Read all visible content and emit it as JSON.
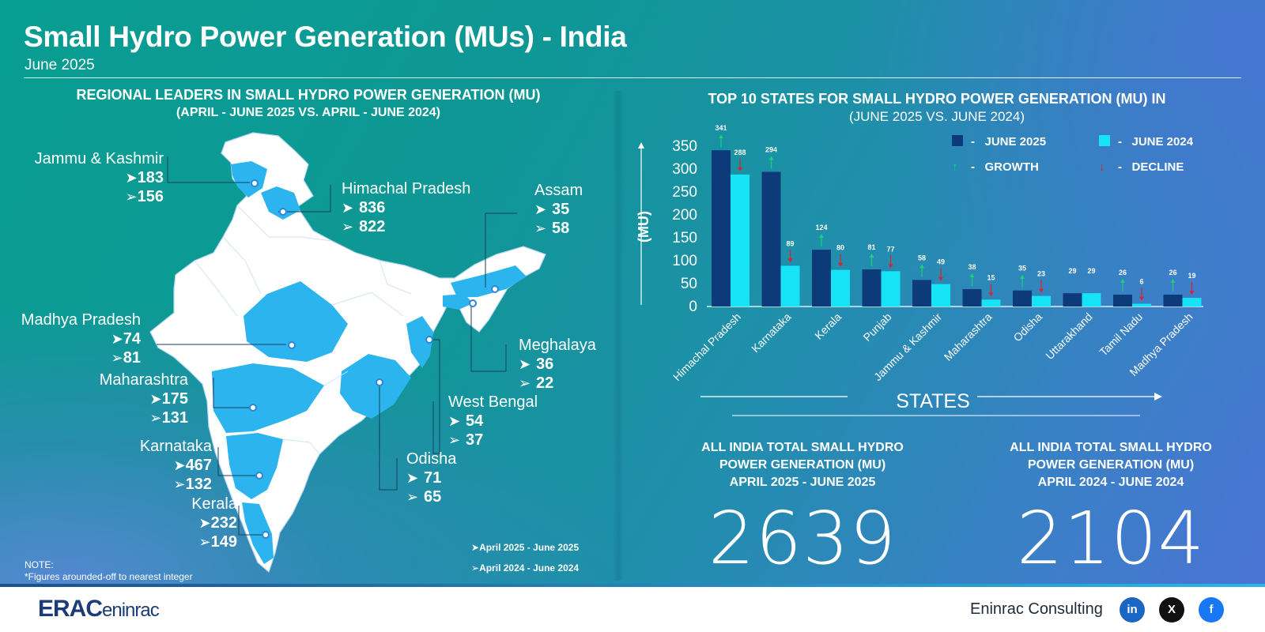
{
  "title": "Small Hydro Power Generation (MUs) - India",
  "subtitle": "June 2025",
  "map": {
    "heading1": "REGIONAL LEADERS IN SMALL HYDRO POWER GENERATION (MU)",
    "heading2": "(APRIL - JUNE 2025 VS. APRIL - JUNE 2024)",
    "regions": [
      {
        "name": "Jammu & Kashmir",
        "current": "183",
        "previous": "156"
      },
      {
        "name": "Himachal Pradesh",
        "current": "836",
        "previous": "822"
      },
      {
        "name": "Assam",
        "current": "35",
        "previous": "58"
      },
      {
        "name": "Madhya Pradesh",
        "current": "74",
        "previous": "81"
      },
      {
        "name": "Meghalaya",
        "current": "36",
        "previous": "22"
      },
      {
        "name": "Maharashtra",
        "current": "175",
        "previous": "131"
      },
      {
        "name": "West Bengal",
        "current": "54",
        "previous": "37"
      },
      {
        "name": "Karnataka",
        "current": "467",
        "previous": "132"
      },
      {
        "name": "Odisha",
        "current": "71",
        "previous": "65"
      },
      {
        "name": "Kerala",
        "current": "232",
        "previous": "149"
      }
    ],
    "legend_current": "April 2025 - June 2025",
    "legend_previous": "April 2024 - June 2024",
    "note_title": "NOTE:",
    "note_text": "*Figures arounded-off to nearest integer",
    "map_fill": "#ffffff",
    "highlight_fill": "#2cb4ef"
  },
  "chart_heading1": "TOP 10 STATES FOR SMALL HYDRO POWER GENERATION (MU) IN",
  "chart_heading2": "(JUNE 2025 VS. JUNE 2024)",
  "legend": {
    "june2025": "JUNE 2025",
    "june2024": "JUNE 2024",
    "growth": "GROWTH",
    "decline": "DECLINE"
  },
  "chart_data": {
    "type": "bar",
    "categories": [
      "Himachal Pradesh",
      "Karnataka",
      "Kerala",
      "Punjab",
      "Jammu & Kashmir",
      "Maharashtra",
      "Odisha",
      "Uttarakhand",
      "Tamil Nadu",
      "Madhya Pradesh"
    ],
    "series": [
      {
        "name": "JUNE 2025",
        "color": "#0d3a78",
        "values": [
          341,
          294,
          124,
          81,
          58,
          38,
          35,
          29,
          26,
          26
        ]
      },
      {
        "name": "JUNE 2024",
        "color": "#17e3f7",
        "values": [
          288,
          89,
          80,
          77,
          49,
          15,
          23,
          29,
          6,
          19
        ]
      }
    ],
    "ylabel": "(MU)",
    "xlabel": "STATES",
    "ylim": [
      0,
      350
    ],
    "yticks": [
      0,
      50,
      100,
      150,
      200,
      250,
      300,
      350
    ],
    "growth_color": "#1ad17a",
    "decline_color": "#e0202a"
  },
  "totals": [
    {
      "label1": "ALL INDIA TOTAL SMALL HYDRO",
      "label2": "POWER GENERATION (MU)",
      "label3": "APRIL 2025 - JUNE 2025",
      "value": "2639"
    },
    {
      "label1": "ALL INDIA TOTAL SMALL HYDRO",
      "label2": "POWER GENERATION (MU)",
      "label3": "APRIL 2024 - JUNE 2024",
      "value": "2104"
    }
  ],
  "footer": {
    "logo_text": "ERAC",
    "logo_sub": "eninrac",
    "company": "Eninrac Consulting",
    "social": [
      {
        "icon": "linkedin-icon",
        "glyph": "in",
        "color": "#1a66c2"
      },
      {
        "icon": "x-icon",
        "glyph": "X",
        "color": "#111111"
      },
      {
        "icon": "facebook-icon",
        "glyph": "f",
        "color": "#1877f2"
      }
    ]
  }
}
